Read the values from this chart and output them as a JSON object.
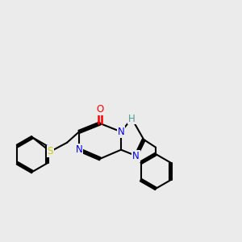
{
  "background_color": "#ebebeb",
  "bond_color": "#000000",
  "bond_width": 1.5,
  "atom_colors": {
    "N": "#0000ee",
    "O": "#ff0000",
    "S": "#cccc00",
    "C": "#000000",
    "H": "#4a9a9a"
  },
  "font_size": 8.5,
  "figsize": [
    3.0,
    3.0
  ],
  "dpi": 100
}
